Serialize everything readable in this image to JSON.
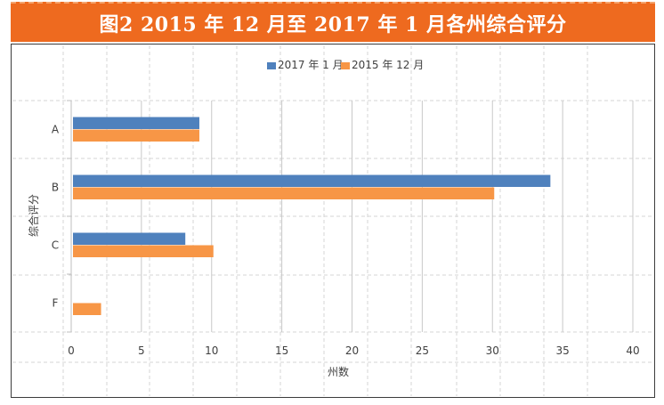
{
  "chart_data": {
    "type": "bar",
    "orientation": "horizontal",
    "title": "图2  2015 年 12 月至 2017 年 1 月各州综合评分",
    "xlabel": "州数",
    "ylabel": "综合评分",
    "categories": [
      "A",
      "B",
      "C",
      "F"
    ],
    "series": [
      {
        "name": "2017 年 1 月",
        "values": [
          9,
          34,
          8,
          0
        ],
        "color": "#4f81bd"
      },
      {
        "name": "2015 年 12 月",
        "values": [
          9,
          30,
          10,
          2
        ],
        "color": "#f79646"
      }
    ],
    "xlim": [
      0,
      40
    ],
    "xticks": [
      0,
      5,
      10,
      15,
      20,
      25,
      30,
      35,
      40
    ],
    "grid": true,
    "legend_position": "top",
    "banner_color": "#ee6a1f"
  }
}
